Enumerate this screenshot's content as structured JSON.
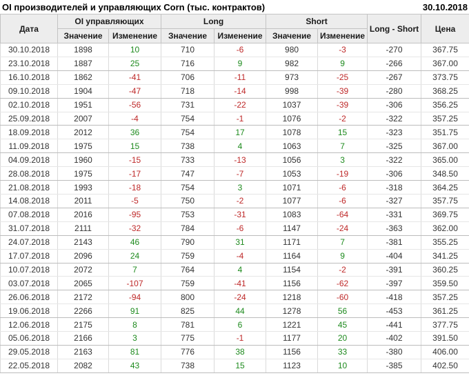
{
  "title": "OI производителей и управляющих Corn (тыс. контрактов)",
  "report_date": "30.10.2018",
  "colors": {
    "positive": "#1d8a1d",
    "negative": "#be2828"
  },
  "table": {
    "headers": {
      "date": "Дата",
      "oi_group": "OI управляющих",
      "long_group": "Long",
      "short_group": "Short",
      "long_short": "Long - Short",
      "price": "Цена",
      "value": "Значение",
      "change": "Изменение"
    },
    "rows": [
      {
        "date": "30.10.2018",
        "oi": "1898",
        "oi_chg": "10",
        "long": "710",
        "long_chg": "-6",
        "short": "980",
        "short_chg": "-3",
        "ls": "-270",
        "price": "367.75"
      },
      {
        "date": "23.10.2018",
        "oi": "1887",
        "oi_chg": "25",
        "long": "716",
        "long_chg": "9",
        "short": "982",
        "short_chg": "9",
        "ls": "-266",
        "price": "367.00"
      },
      {
        "date": "16.10.2018",
        "oi": "1862",
        "oi_chg": "-41",
        "long": "706",
        "long_chg": "-11",
        "short": "973",
        "short_chg": "-25",
        "ls": "-267",
        "price": "373.75"
      },
      {
        "date": "09.10.2018",
        "oi": "1904",
        "oi_chg": "-47",
        "long": "718",
        "long_chg": "-14",
        "short": "998",
        "short_chg": "-39",
        "ls": "-280",
        "price": "368.25"
      },
      {
        "date": "02.10.2018",
        "oi": "1951",
        "oi_chg": "-56",
        "long": "731",
        "long_chg": "-22",
        "short": "1037",
        "short_chg": "-39",
        "ls": "-306",
        "price": "356.25"
      },
      {
        "date": "25.09.2018",
        "oi": "2007",
        "oi_chg": "-4",
        "long": "754",
        "long_chg": "-1",
        "short": "1076",
        "short_chg": "-2",
        "ls": "-322",
        "price": "357.25"
      },
      {
        "date": "18.09.2018",
        "oi": "2012",
        "oi_chg": "36",
        "long": "754",
        "long_chg": "17",
        "short": "1078",
        "short_chg": "15",
        "ls": "-323",
        "price": "351.75"
      },
      {
        "date": "11.09.2018",
        "oi": "1975",
        "oi_chg": "15",
        "long": "738",
        "long_chg": "4",
        "short": "1063",
        "short_chg": "7",
        "ls": "-325",
        "price": "367.00"
      },
      {
        "date": "04.09.2018",
        "oi": "1960",
        "oi_chg": "-15",
        "long": "733",
        "long_chg": "-13",
        "short": "1056",
        "short_chg": "3",
        "ls": "-322",
        "price": "365.00"
      },
      {
        "date": "28.08.2018",
        "oi": "1975",
        "oi_chg": "-17",
        "long": "747",
        "long_chg": "-7",
        "short": "1053",
        "short_chg": "-19",
        "ls": "-306",
        "price": "348.50"
      },
      {
        "date": "21.08.2018",
        "oi": "1993",
        "oi_chg": "-18",
        "long": "754",
        "long_chg": "3",
        "short": "1071",
        "short_chg": "-6",
        "ls": "-318",
        "price": "364.25"
      },
      {
        "date": "14.08.2018",
        "oi": "2011",
        "oi_chg": "-5",
        "long": "750",
        "long_chg": "-2",
        "short": "1077",
        "short_chg": "-6",
        "ls": "-327",
        "price": "357.75"
      },
      {
        "date": "07.08.2018",
        "oi": "2016",
        "oi_chg": "-95",
        "long": "753",
        "long_chg": "-31",
        "short": "1083",
        "short_chg": "-64",
        "ls": "-331",
        "price": "369.75"
      },
      {
        "date": "31.07.2018",
        "oi": "2111",
        "oi_chg": "-32",
        "long": "784",
        "long_chg": "-6",
        "short": "1147",
        "short_chg": "-24",
        "ls": "-363",
        "price": "362.00"
      },
      {
        "date": "24.07.2018",
        "oi": "2143",
        "oi_chg": "46",
        "long": "790",
        "long_chg": "31",
        "short": "1171",
        "short_chg": "7",
        "ls": "-381",
        "price": "355.25"
      },
      {
        "date": "17.07.2018",
        "oi": "2096",
        "oi_chg": "24",
        "long": "759",
        "long_chg": "-4",
        "short": "1164",
        "short_chg": "9",
        "ls": "-404",
        "price": "341.25"
      },
      {
        "date": "10.07.2018",
        "oi": "2072",
        "oi_chg": "7",
        "long": "764",
        "long_chg": "4",
        "short": "1154",
        "short_chg": "-2",
        "ls": "-391",
        "price": "360.25"
      },
      {
        "date": "03.07.2018",
        "oi": "2065",
        "oi_chg": "-107",
        "long": "759",
        "long_chg": "-41",
        "short": "1156",
        "short_chg": "-62",
        "ls": "-397",
        "price": "359.50"
      },
      {
        "date": "26.06.2018",
        "oi": "2172",
        "oi_chg": "-94",
        "long": "800",
        "long_chg": "-24",
        "short": "1218",
        "short_chg": "-60",
        "ls": "-418",
        "price": "357.25"
      },
      {
        "date": "19.06.2018",
        "oi": "2266",
        "oi_chg": "91",
        "long": "825",
        "long_chg": "44",
        "short": "1278",
        "short_chg": "56",
        "ls": "-453",
        "price": "361.25"
      },
      {
        "date": "12.06.2018",
        "oi": "2175",
        "oi_chg": "8",
        "long": "781",
        "long_chg": "6",
        "short": "1221",
        "short_chg": "45",
        "ls": "-441",
        "price": "377.75"
      },
      {
        "date": "05.06.2018",
        "oi": "2166",
        "oi_chg": "3",
        "long": "775",
        "long_chg": "-1",
        "short": "1177",
        "short_chg": "20",
        "ls": "-402",
        "price": "391.50"
      },
      {
        "date": "29.05.2018",
        "oi": "2163",
        "oi_chg": "81",
        "long": "776",
        "long_chg": "38",
        "short": "1156",
        "short_chg": "33",
        "ls": "-380",
        "price": "406.00"
      },
      {
        "date": "22.05.2018",
        "oi": "2082",
        "oi_chg": "43",
        "long": "738",
        "long_chg": "15",
        "short": "1123",
        "short_chg": "10",
        "ls": "-385",
        "price": "402.50"
      }
    ]
  }
}
